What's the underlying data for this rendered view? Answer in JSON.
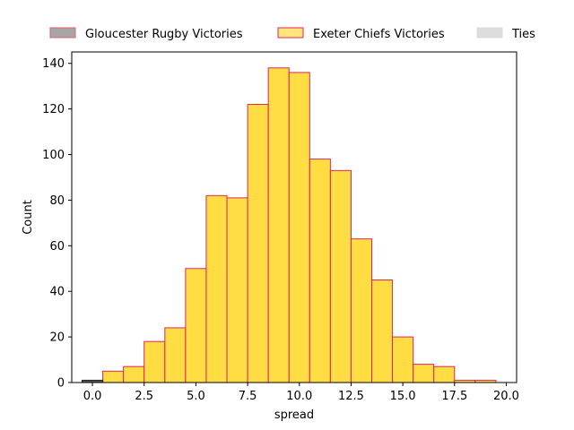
{
  "chart_data": {
    "type": "bar",
    "title": "",
    "xlabel": "spread",
    "ylabel": "Count",
    "xlim": [
      -1.0,
      20.5
    ],
    "ylim": [
      0,
      145
    ],
    "xticks": [
      0.0,
      2.5,
      5.0,
      7.5,
      10.0,
      12.5,
      15.0,
      17.5,
      20.0
    ],
    "xtick_labels": [
      "0.0",
      "2.5",
      "5.0",
      "7.5",
      "10.0",
      "12.5",
      "15.0",
      "17.5",
      "20.0"
    ],
    "yticks": [
      0,
      20,
      40,
      60,
      80,
      100,
      120,
      140
    ],
    "ytick_labels": [
      "0",
      "20",
      "40",
      "60",
      "80",
      "100",
      "120",
      "140"
    ],
    "grid": false,
    "legend_placement": "top",
    "series": [
      {
        "name": "Gloucester Rugby Victories",
        "color": "#999999",
        "edge": "#e06070",
        "bins": []
      },
      {
        "name": "Exeter Chiefs Victories",
        "color": "#ffd92f",
        "edge": "#e0245e",
        "bins": [
          {
            "x0": 0.5,
            "x1": 1.5,
            "count": 5
          },
          {
            "x0": 1.5,
            "x1": 2.5,
            "count": 7
          },
          {
            "x0": 2.5,
            "x1": 3.5,
            "count": 18
          },
          {
            "x0": 3.5,
            "x1": 4.5,
            "count": 24
          },
          {
            "x0": 4.5,
            "x1": 5.5,
            "count": 50
          },
          {
            "x0": 5.5,
            "x1": 6.5,
            "count": 82
          },
          {
            "x0": 6.5,
            "x1": 7.5,
            "count": 81
          },
          {
            "x0": 7.5,
            "x1": 8.5,
            "count": 122
          },
          {
            "x0": 8.5,
            "x1": 9.5,
            "count": 138
          },
          {
            "x0": 9.5,
            "x1": 10.5,
            "count": 136
          },
          {
            "x0": 10.5,
            "x1": 11.5,
            "count": 98
          },
          {
            "x0": 11.5,
            "x1": 12.5,
            "count": 93
          },
          {
            "x0": 12.5,
            "x1": 13.5,
            "count": 63
          },
          {
            "x0": 13.5,
            "x1": 14.5,
            "count": 45
          },
          {
            "x0": 14.5,
            "x1": 15.5,
            "count": 20
          },
          {
            "x0": 15.5,
            "x1": 16.5,
            "count": 8
          },
          {
            "x0": 16.5,
            "x1": 17.5,
            "count": 7
          },
          {
            "x0": 17.5,
            "x1": 18.5,
            "count": 1
          },
          {
            "x0": 18.5,
            "x1": 19.5,
            "count": 1
          }
        ]
      },
      {
        "name": "Ties",
        "color": "#555555",
        "edge": "#222222",
        "bins": [
          {
            "x0": -0.5,
            "x1": 0.5,
            "count": 1
          }
        ]
      }
    ]
  }
}
